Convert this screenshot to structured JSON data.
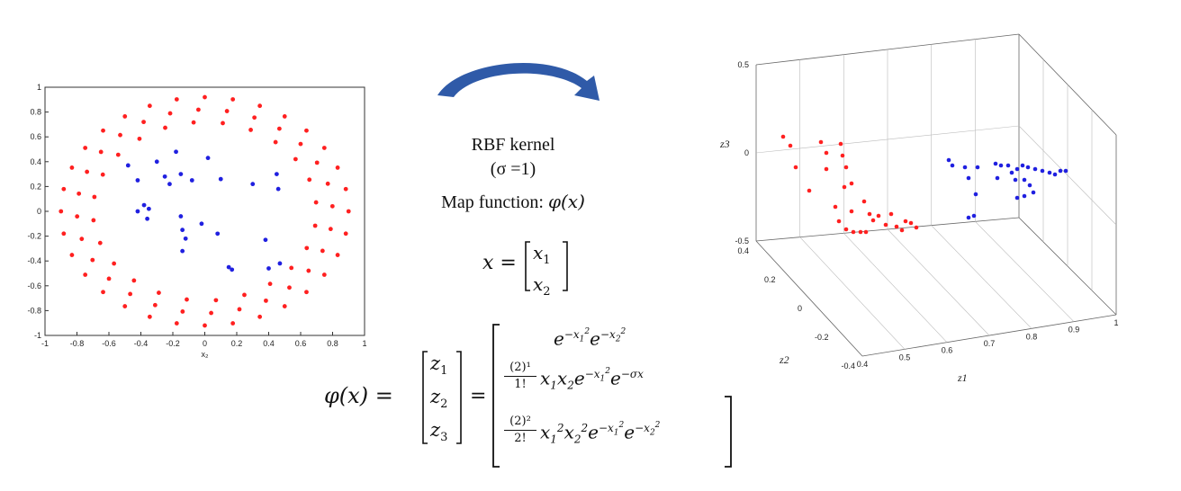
{
  "center": {
    "kernel_title": "RBF kernel",
    "sigma": "(σ =1)",
    "map_function_label": "Map function: ",
    "phi_x": "φ(x)",
    "x_def_lhs": "x =",
    "x_vec": [
      "x",
      "x"
    ],
    "x_vec_sub": [
      "1",
      "2"
    ]
  },
  "formula": {
    "lhs": "φ(x) =",
    "z_vec": [
      "z",
      "z",
      "z"
    ],
    "z_sub": [
      "1",
      "2",
      "3"
    ],
    "equals": "=",
    "row1": "e^{-x1^2} e^{-x2^2}",
    "row2_coef_num": "(2)¹",
    "row2_coef_den": "1!",
    "row2_expr": "x₁x₂e^{-x1^2} e^{-σx}",
    "row3_coef_num": "(2)²",
    "row3_coef_den": "2!",
    "row3_expr": "x₁²x₂²e^{-x1^2} e^{-x2^2}"
  },
  "arrow": {
    "color": "#2f5aa8"
  },
  "colors": {
    "class_outer": "#ff2020",
    "class_inner": "#2020e0"
  },
  "chart_data": [
    {
      "type": "scatter",
      "title": "",
      "xlabel": "x₂",
      "ylabel": "",
      "xlim": [
        -1,
        1
      ],
      "ylim": [
        -1,
        1
      ],
      "xticks": [
        "-1",
        "-0.8",
        "-0.6",
        "-0.4",
        "-0.2",
        "0",
        "0.2",
        "0.4",
        "0.6",
        "0.8",
        "1"
      ],
      "yticks": [
        "1",
        "0.8",
        "0.6",
        "0.4",
        "0.2",
        "0",
        "-0.2",
        "-0.4",
        "-0.6",
        "-0.8",
        "-1"
      ],
      "series": [
        {
          "color": "#ff2020",
          "rings": [
            {
              "rx": 0.9,
              "ry": 0.92,
              "n": 32,
              "offset": 0.0
            },
            {
              "rx": 0.8,
              "ry": 0.82,
              "n": 28,
              "offset": 0.05
            },
            {
              "rx": 0.7,
              "ry": 0.72,
              "n": 24,
              "offset": 0.1
            }
          ]
        },
        {
          "color": "#2020e0",
          "points": [
            [
              -0.48,
              0.37
            ],
            [
              -0.42,
              0.25
            ],
            [
              -0.38,
              0.05
            ],
            [
              -0.35,
              0.02
            ],
            [
              -0.42,
              0.0
            ],
            [
              -0.36,
              -0.06
            ],
            [
              -0.3,
              0.4
            ],
            [
              -0.25,
              0.28
            ],
            [
              -0.22,
              0.22
            ],
            [
              -0.18,
              0.48
            ],
            [
              -0.15,
              0.3
            ],
            [
              -0.08,
              0.25
            ],
            [
              0.02,
              0.43
            ],
            [
              0.1,
              0.26
            ],
            [
              -0.15,
              -0.04
            ],
            [
              -0.14,
              -0.15
            ],
            [
              -0.12,
              -0.22
            ],
            [
              -0.14,
              -0.32
            ],
            [
              -0.02,
              -0.1
            ],
            [
              0.08,
              -0.18
            ],
            [
              0.15,
              -0.45
            ],
            [
              0.17,
              -0.47
            ],
            [
              0.3,
              0.22
            ],
            [
              0.38,
              -0.23
            ],
            [
              0.4,
              -0.46
            ],
            [
              0.45,
              0.3
            ],
            [
              0.46,
              0.18
            ],
            [
              0.47,
              -0.42
            ]
          ]
        }
      ]
    },
    {
      "type": "scatter",
      "title": "",
      "xlabel": "z1",
      "ylabel": "z2",
      "zlabel": "z3",
      "xticks": [
        "0.4",
        "0.5",
        "0.6",
        "0.7",
        "0.8",
        "0.9",
        "1"
      ],
      "yticks": [
        "0.4",
        "0.2",
        "0",
        "-0.2",
        "-0.4"
      ],
      "zticks": [
        "0.5",
        "0",
        "-0.5"
      ],
      "series": [
        {
          "color": "#ff2020",
          "note_count": 30
        },
        {
          "color": "#2020e0",
          "note_count": 28
        }
      ]
    }
  ]
}
